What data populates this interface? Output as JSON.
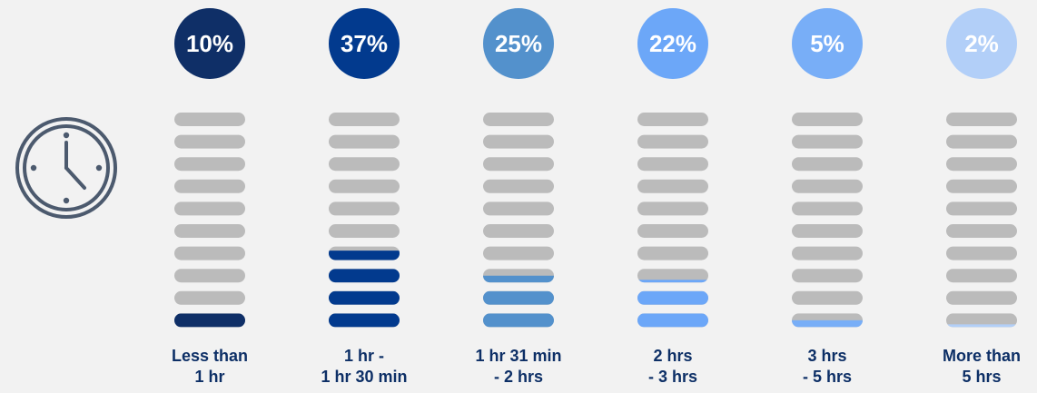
{
  "chart_data": {
    "type": "bar",
    "categories": [
      [
        "Less than",
        "1 hr"
      ],
      [
        "1 hr -",
        "1 hr 30 min"
      ],
      [
        "1 hr 31 min",
        "- 2 hrs"
      ],
      [
        "2 hrs",
        "- 3 hrs"
      ],
      [
        "3 hrs",
        "- 5 hrs"
      ],
      [
        "More than",
        "5 hrs"
      ]
    ],
    "values": [
      10,
      37,
      25,
      22,
      5,
      2
    ],
    "value_labels": [
      "10%",
      "37%",
      "25%",
      "22%",
      "5%",
      "2%"
    ],
    "ylim": [
      0,
      100
    ],
    "segments": 10,
    "unit": "%"
  },
  "colors": {
    "background": "#f2f2f2",
    "empty_bar": "#bbbbbb",
    "label_text": "#0d2f66",
    "series": [
      "#0f2f67",
      "#023a8e",
      "#5391cc",
      "#6ca7f8",
      "#78aef7",
      "#b2cff8"
    ]
  },
  "icons": {
    "clock": "clock-icon"
  }
}
